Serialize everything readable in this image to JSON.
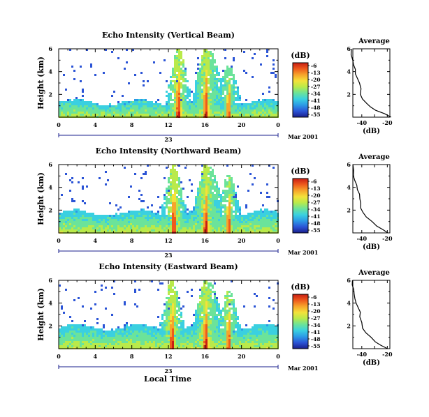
{
  "colors": {
    "scale": [
      "#1a1f8c",
      "#2b54d6",
      "#2c9ae6",
      "#3ad0e0",
      "#6be39a",
      "#b9ea4a",
      "#f4e13a",
      "#f7a52b",
      "#ee5a1c",
      "#c81e14"
    ]
  },
  "chart_data": [
    {
      "type": "heatmap",
      "title": "Echo Intensity (Vertical Beam)",
      "ylabel": "Height (km)",
      "x_ticks": [
        "0",
        "4",
        "8",
        "12",
        "16",
        "20",
        "0"
      ],
      "xlim": [
        0,
        24
      ],
      "y_ticks": [
        "2",
        "4",
        "6"
      ],
      "ylim": [
        0,
        6
      ],
      "date_day": "23",
      "date_month": "Mar 2001",
      "colorbar": {
        "label": "(dB)",
        "ticks": [
          "-6",
          "-13",
          "-20",
          "-27",
          "-34",
          "-41",
          "-48",
          "-55"
        ]
      },
      "cloud_top_km": 1.4,
      "events": [
        {
          "hour": 13.0,
          "strength": 1.0
        },
        {
          "hour": 16.0,
          "strength": 1.0
        },
        {
          "hour": 18.5,
          "strength": 0.7
        }
      ],
      "average": {
        "title": "Average",
        "xlabel": "(dB)",
        "x_ticks": [
          "-40",
          "-20"
        ],
        "y_ticks": [
          "2",
          "4",
          "6"
        ],
        "profile": [
          [
            0.0,
            -17
          ],
          [
            0.3,
            -22
          ],
          [
            0.6,
            -29
          ],
          [
            0.9,
            -33
          ],
          [
            1.2,
            -36
          ],
          [
            1.6,
            -39
          ],
          [
            2.0,
            -41
          ],
          [
            2.5,
            -40
          ],
          [
            3.0,
            -42
          ],
          [
            3.4,
            -43
          ],
          [
            3.8,
            -45
          ],
          [
            4.2,
            -45
          ],
          [
            4.6,
            -47
          ],
          [
            5.0,
            -47
          ],
          [
            5.5,
            -48
          ],
          [
            6.0,
            -48
          ]
        ]
      }
    },
    {
      "type": "heatmap",
      "title": "Echo Intensity (Northward Beam)",
      "ylabel": "Height (km)",
      "x_ticks": [
        "0",
        "4",
        "8",
        "12",
        "16",
        "20",
        "0"
      ],
      "xlim": [
        0,
        24
      ],
      "y_ticks": [
        "2",
        "4",
        "6"
      ],
      "ylim": [
        0,
        6
      ],
      "date_day": "23",
      "date_month": "Mar 2001",
      "colorbar": {
        "label": "(dB)",
        "ticks": [
          "-6",
          "-13",
          "-20",
          "-27",
          "-34",
          "-41",
          "-48",
          "-55"
        ]
      },
      "cloud_top_km": 1.9,
      "events": [
        {
          "hour": 12.5,
          "strength": 1.0
        },
        {
          "hour": 16.0,
          "strength": 1.0
        },
        {
          "hour": 18.5,
          "strength": 0.8
        }
      ],
      "average": {
        "title": "Average",
        "xlabel": "(dB)",
        "x_ticks": [
          "-40",
          "-20"
        ],
        "y_ticks": [
          "2",
          "4",
          "6"
        ],
        "profile": [
          [
            0.0,
            -20
          ],
          [
            0.3,
            -24
          ],
          [
            0.6,
            -28
          ],
          [
            1.0,
            -32
          ],
          [
            1.4,
            -36
          ],
          [
            1.8,
            -39
          ],
          [
            2.2,
            -41
          ],
          [
            2.6,
            -41
          ],
          [
            3.0,
            -42
          ],
          [
            3.4,
            -42
          ],
          [
            3.8,
            -43
          ],
          [
            4.2,
            -44
          ],
          [
            4.6,
            -45
          ],
          [
            5.0,
            -46
          ],
          [
            5.5,
            -46
          ],
          [
            6.0,
            -47
          ]
        ]
      }
    },
    {
      "type": "heatmap",
      "title": "Echo Intensity (Eastward Beam)",
      "ylabel": "Height (km)",
      "xlabel": "Local Time",
      "x_ticks": [
        "0",
        "4",
        "8",
        "12",
        "16",
        "20",
        "0"
      ],
      "xlim": [
        0,
        24
      ],
      "y_ticks": [
        "2",
        "4",
        "6"
      ],
      "ylim": [
        0,
        6
      ],
      "date_day": "23",
      "date_month": "Mar 2001",
      "colorbar": {
        "label": "(dB)",
        "ticks": [
          "-6",
          "-13",
          "-20",
          "-27",
          "-34",
          "-41",
          "-48",
          "-55"
        ]
      },
      "cloud_top_km": 2.0,
      "events": [
        {
          "hour": 12.3,
          "strength": 1.0
        },
        {
          "hour": 16.0,
          "strength": 1.0
        },
        {
          "hour": 18.5,
          "strength": 0.8
        }
      ],
      "average": {
        "title": "Average",
        "xlabel": "(dB)",
        "x_ticks": [
          "-40",
          "-20"
        ],
        "y_ticks": [
          "2",
          "4",
          "6"
        ],
        "profile": [
          [
            0.0,
            -20
          ],
          [
            0.3,
            -25
          ],
          [
            0.6,
            -29
          ],
          [
            1.0,
            -33
          ],
          [
            1.4,
            -37
          ],
          [
            1.8,
            -39
          ],
          [
            2.3,
            -40
          ],
          [
            2.8,
            -41
          ],
          [
            3.2,
            -41
          ],
          [
            3.6,
            -43
          ],
          [
            4.0,
            -44
          ],
          [
            4.4,
            -45
          ],
          [
            4.8,
            -46
          ],
          [
            5.2,
            -46
          ],
          [
            5.6,
            -47
          ],
          [
            6.0,
            -47
          ]
        ]
      }
    }
  ]
}
